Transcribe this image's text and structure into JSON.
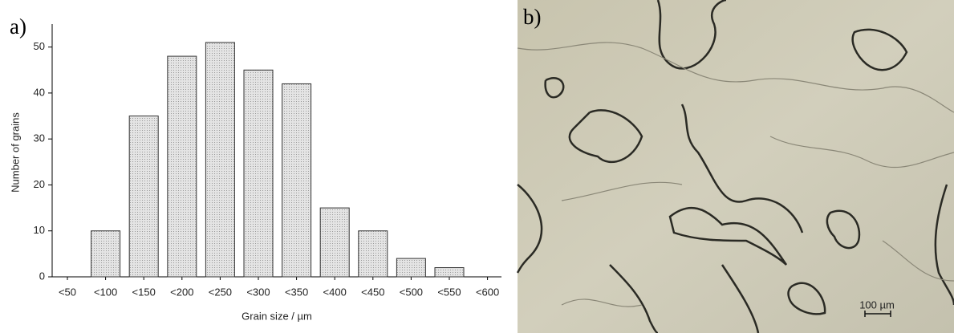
{
  "chart_data": {
    "type": "bar",
    "panel_label": "a)",
    "xlabel": "Grain size / µm",
    "ylabel": "Number of grains",
    "categories": [
      "<50",
      "<100",
      "<150",
      "<200",
      "<250",
      "<300",
      "<350",
      "<400",
      "<450",
      "<500",
      "<550",
      "<600"
    ],
    "values": [
      0,
      10,
      35,
      48,
      51,
      45,
      42,
      15,
      10,
      4,
      2,
      0
    ],
    "color": "#d6d6d6",
    "ylim": [
      0,
      55
    ],
    "yticks": [
      0,
      10,
      20,
      30,
      40,
      50
    ],
    "grid": false
  },
  "micrograph": {
    "panel_label": "b)",
    "scale_bar": "100 µm"
  }
}
